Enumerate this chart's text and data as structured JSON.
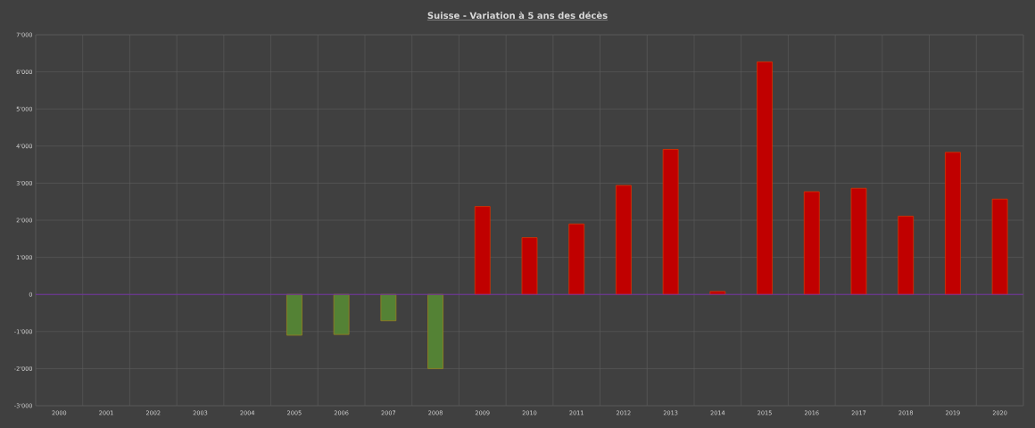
{
  "chart_data": {
    "type": "bar",
    "title": "Suisse - Variation à 5 ans des décès",
    "categories": [
      "2000",
      "2001",
      "2002",
      "2003",
      "2004",
      "2005",
      "2006",
      "2007",
      "2008",
      "2009",
      "2010",
      "2011",
      "2012",
      "2013",
      "2014",
      "2015",
      "2016",
      "2017",
      "2018",
      "2019",
      "2020"
    ],
    "values": [
      null,
      null,
      null,
      null,
      null,
      -1100,
      -1080,
      -710,
      -2000,
      2370,
      1530,
      1900,
      2940,
      3910,
      80,
      6270,
      2770,
      2860,
      2110,
      3830,
      2570
    ],
    "colors": [
      "#548235",
      "#548235",
      "#548235",
      "#548235",
      "#548235",
      "#548235",
      "#548235",
      "#548235",
      "#548235",
      "#c00000",
      "#c00000",
      "#c00000",
      "#c00000",
      "#c00000",
      "#c00000",
      "#c00000",
      "#c00000",
      "#c00000",
      "#c00000",
      "#c00000",
      "#c00000"
    ],
    "ylim": [
      -3000,
      7000
    ],
    "yticks": [
      {
        "value": -3000,
        "label": "-3'000"
      },
      {
        "value": -2000,
        "label": "-2'000"
      },
      {
        "value": -1000,
        "label": "-1'000"
      },
      0,
      {
        "value": 1000,
        "label": "1'000"
      },
      {
        "value": 2000,
        "label": "2'000"
      },
      {
        "value": 3000,
        "label": "3'000"
      },
      {
        "value": 4000,
        "label": "4'000"
      },
      {
        "value": 5000,
        "label": "5'000"
      },
      {
        "value": 6000,
        "label": "6'000"
      },
      {
        "value": 7000,
        "label": "7'000"
      }
    ],
    "ref_lines": [
      {
        "axis": "y",
        "value": 0,
        "color": "#7030a0"
      }
    ],
    "grid": true
  }
}
